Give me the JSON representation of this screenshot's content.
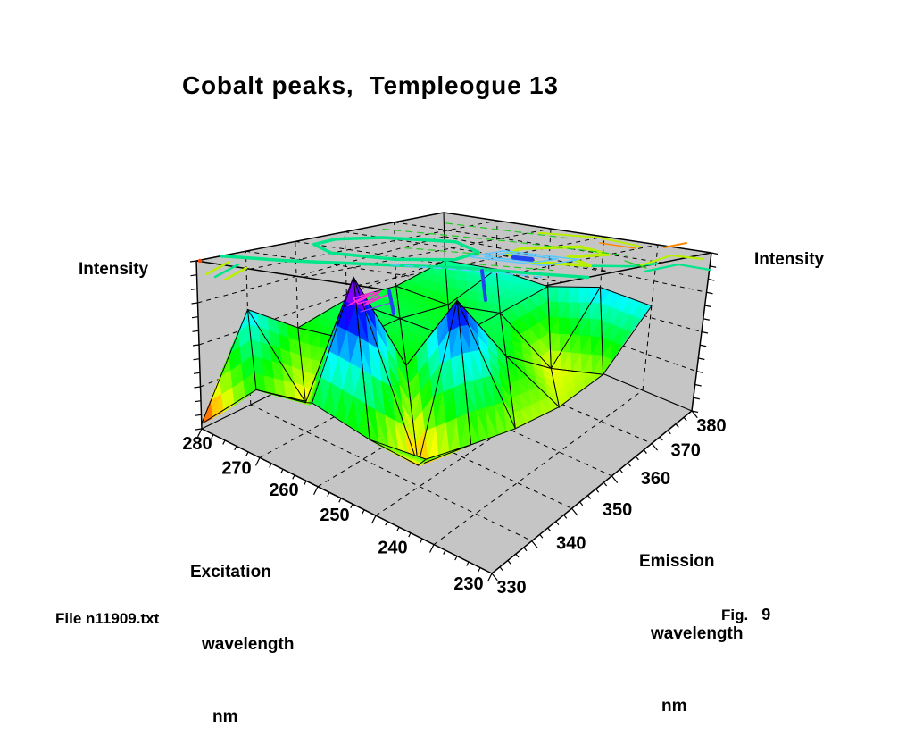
{
  "title": {
    "text": "Cobalt peaks,  Templeogue 13"
  },
  "axes": {
    "intensity_left": "Intensity",
    "intensity_right": "Intensity",
    "excitation": {
      "title_lines": [
        "Excitation",
        "wavelength",
        "nm"
      ]
    },
    "emission": {
      "title_lines": [
        "Emission",
        "wavelength",
        "nm"
      ]
    }
  },
  "footer": {
    "file_label": "File n11909.txt",
    "fig_label": "Fig.",
    "fig_number": "9"
  },
  "colors": {
    "background": "#ffffff",
    "text": "#000000",
    "box_gray": "#c5c5c5",
    "grid_line": "#000000",
    "contour_spring_green": "#00e68a",
    "contour_yellow_green": "#b8f000",
    "contour_green": "#22cc22",
    "contour_cyan": "#5ac8ff",
    "contour_blue": "#2244ee",
    "contour_magenta": "#ff2ad4",
    "contour_purple": "#8844ff",
    "contour_orange": "#ff8800",
    "contour_red": "#ff4400"
  },
  "chart_data": {
    "type": "heatmap",
    "chart_kind": "3d-surface-plot-with-ceiling-contour-projection",
    "title": "Cobalt peaks,  Templeogue 13",
    "xlabel": "Emission wavelength nm",
    "ylabel": "Excitation wavelength nm",
    "zlabel": "Intensity",
    "x_emission_nm": [
      330,
      340,
      350,
      360,
      370,
      380
    ],
    "y_excitation_nm": [
      280,
      270,
      260,
      250,
      240
    ],
    "emission_axis_ticks": [
      330,
      340,
      350,
      360,
      370,
      380
    ],
    "excitation_axis_ticks": [
      280,
      270,
      260,
      250,
      240,
      230
    ],
    "emission_axis_range": [
      330,
      380
    ],
    "excitation_axis_range": [
      230,
      280
    ],
    "intensity_axis": {
      "label": "Intensity",
      "tick_count": 13,
      "numeric_labels_shown": false
    },
    "values_normalized_intensity": [
      [
        0.03,
        0.62,
        0.38,
        0.46,
        0.42,
        0.5
      ],
      [
        0.36,
        0.17,
        0.42,
        0.44,
        0.4,
        0.55
      ],
      [
        0.4,
        0.95,
        0.38,
        0.42,
        0.46,
        0.52
      ],
      [
        0.33,
        0.1,
        0.82,
        0.42,
        0.2,
        0.62
      ],
      [
        0.34,
        0.3,
        0.26,
        0.24,
        0.28,
        0.58
      ]
    ],
    "colormap_low_to_high": [
      "red",
      "orange",
      "yellow",
      "green",
      "cyan",
      "blue",
      "magenta"
    ],
    "grid_style": "dashed",
    "legend": "none",
    "ceiling_contour_projection": true
  }
}
